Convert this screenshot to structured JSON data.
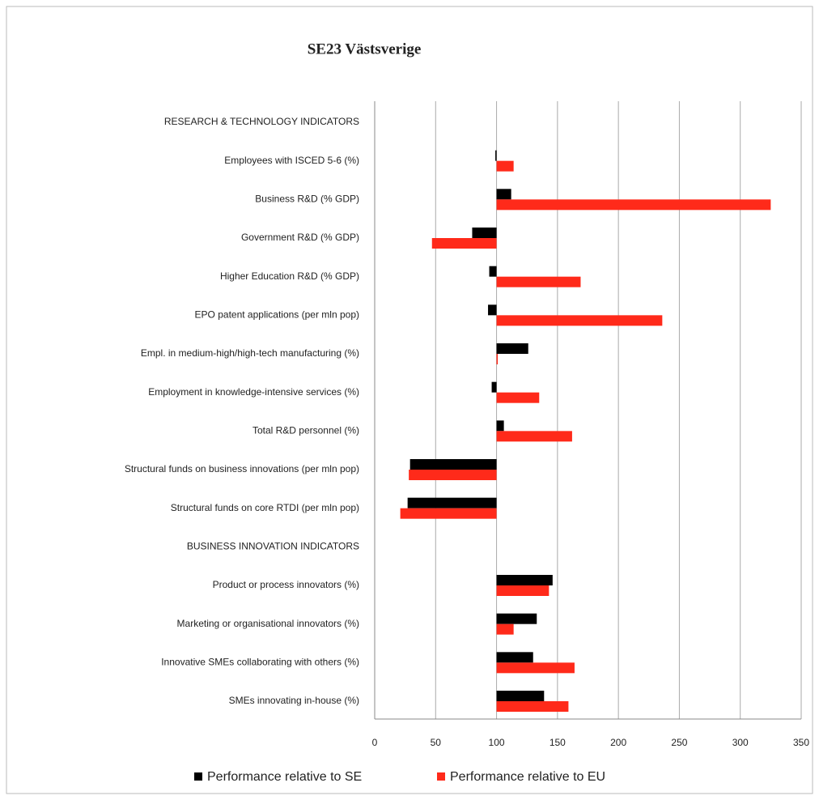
{
  "chart_data": {
    "type": "hbar",
    "title": "SE23 Västsverige",
    "categories": [
      "RESEARCH & TECHNOLOGY INDICATORS",
      "Employees with ISCED 5-6 (%)",
      "Business R&D (% GDP)",
      "Government R&D (% GDP)",
      "Higher Education R&D (% GDP)",
      "EPO patent applications (per mln pop)",
      "Empl. in medium-high/high-tech manufacturing (%)",
      "Employment in knowledge-intensive services (%)",
      "Total R&D personnel (%)",
      "Structural funds on business innovations (per mln pop)",
      "Structural funds on core RTDI (per mln pop)",
      "BUSINESS INNOVATION INDICATORS",
      "Product or process innovators (%)",
      "Marketing or organisational innovators (%)",
      "Innovative SMEs collaborating with others (%)",
      "SMEs innovating in-house (%)"
    ],
    "series": [
      {
        "name": "Performance relative to SE",
        "color": "#000000",
        "values": [
          null,
          99,
          112,
          80,
          94,
          93,
          126,
          96,
          106,
          29,
          27,
          null,
          146,
          133,
          130,
          139
        ]
      },
      {
        "name": "Performance relative to EU",
        "color": "#ff2a1a",
        "values": [
          null,
          114,
          325,
          47,
          169,
          236,
          101,
          135,
          162,
          28,
          21,
          null,
          143,
          114,
          164,
          159
        ]
      }
    ],
    "baseline": 100,
    "xlim": [
      0,
      350
    ],
    "xticks": [
      0,
      50,
      100,
      150,
      200,
      250,
      300,
      350
    ],
    "grid": true,
    "legend": "bottom"
  }
}
